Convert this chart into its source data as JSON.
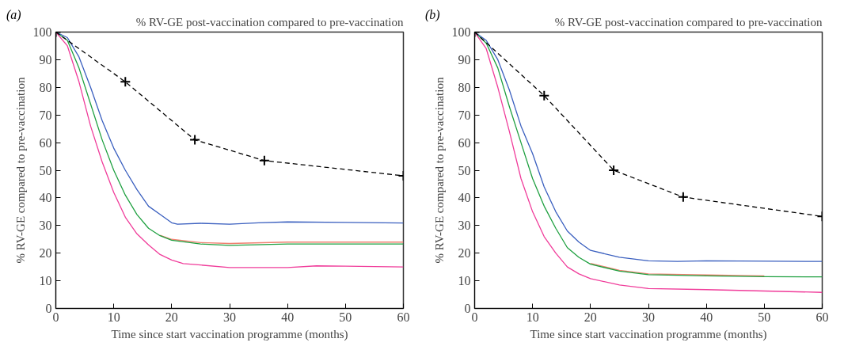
{
  "chart_data": [
    {
      "type": "line",
      "title": "% RV-GE post-vaccination compared to pre-vaccination",
      "xlabel": "Time since start vaccination programme (months)",
      "ylabel": "% RV-GE compared to pre-vaccination",
      "annotations": [
        "(a)"
      ],
      "xlim": [
        0,
        60
      ],
      "ylim": [
        0,
        100
      ],
      "xticks": [
        0,
        10,
        20,
        30,
        40,
        50,
        60
      ],
      "yticks": [
        0,
        10,
        20,
        30,
        40,
        50,
        60,
        70,
        80,
        90,
        100
      ],
      "grid": false,
      "series": [
        {
          "color": "#3a5fbf",
          "x": [
            0,
            2,
            4,
            6,
            8,
            10,
            12,
            14,
            16,
            18,
            20,
            21,
            25,
            30,
            35,
            40,
            50,
            60
          ],
          "values": [
            100,
            98,
            91,
            80,
            68,
            58,
            50,
            43,
            37,
            34,
            31,
            30.5,
            30.8,
            30.5,
            31,
            31.3,
            31.1,
            30.9
          ]
        },
        {
          "color": "#f08070",
          "x": [
            18,
            20,
            25,
            30,
            40,
            50,
            60
          ],
          "values": [
            26.5,
            25,
            23.8,
            23.5,
            24,
            24,
            24
          ]
        },
        {
          "color": "#1fa040",
          "x": [
            0,
            2,
            4,
            6,
            8,
            10,
            12,
            14,
            16,
            18,
            20,
            25,
            30,
            40,
            50,
            60
          ],
          "values": [
            100,
            97,
            87,
            74,
            61,
            50,
            41,
            34,
            29,
            26.3,
            24.7,
            23.3,
            22.8,
            23.3,
            23.3,
            23.3
          ]
        },
        {
          "color": "#f03c9a",
          "x": [
            0,
            2,
            4,
            6,
            8,
            10,
            12,
            14,
            16,
            18,
            20,
            22,
            25,
            30,
            40,
            45,
            50,
            60
          ],
          "values": [
            100,
            95,
            82,
            66,
            53,
            42,
            33,
            27,
            23,
            19.5,
            17.5,
            16.2,
            15.7,
            14.8,
            14.8,
            15.4,
            15.3,
            15
          ]
        },
        {
          "color": "#000000",
          "marker": "cross",
          "line_style": "dashed",
          "x": [
            0,
            12,
            24,
            36,
            60
          ],
          "values": [
            100,
            82,
            61,
            53.5,
            48
          ]
        }
      ]
    },
    {
      "type": "line",
      "title": "% RV-GE post-vaccination compared to pre-vaccination",
      "xlabel": "Time since start vaccination programme (months)",
      "ylabel": "% RV-GE compared to pre-vaccination",
      "annotations": [
        "(b)"
      ],
      "xlim": [
        0,
        60
      ],
      "ylim": [
        0,
        100
      ],
      "xticks": [
        0,
        10,
        20,
        30,
        40,
        50,
        60
      ],
      "yticks": [
        0,
        10,
        20,
        30,
        40,
        50,
        60,
        70,
        80,
        90,
        100
      ],
      "grid": false,
      "series": [
        {
          "color": "#3a5fbf",
          "x": [
            0,
            2,
            4,
            6,
            8,
            10,
            12,
            14,
            16,
            18,
            20,
            25,
            30,
            35,
            40,
            60
          ],
          "values": [
            100,
            97,
            90,
            79,
            66,
            56,
            44,
            35,
            28,
            24,
            21,
            18.5,
            17.2,
            17,
            17.2,
            17
          ]
        },
        {
          "color": "#f08070",
          "x": [
            20,
            25,
            30,
            40,
            50
          ],
          "values": [
            16.3,
            13.8,
            12.5,
            12.1,
            11.8
          ]
        },
        {
          "color": "#1fa040",
          "x": [
            0,
            2,
            4,
            6,
            8,
            10,
            12,
            14,
            16,
            18,
            20,
            25,
            30,
            40,
            50,
            60
          ],
          "values": [
            100,
            96,
            87,
            73,
            60,
            47,
            37,
            29,
            22,
            18.5,
            16,
            13.5,
            12.2,
            11.8,
            11.5,
            11.4
          ]
        },
        {
          "color": "#f03c9a",
          "x": [
            0,
            2,
            4,
            6,
            8,
            10,
            12,
            14,
            16,
            18,
            20,
            25,
            30,
            40,
            50,
            60
          ],
          "values": [
            100,
            94,
            80,
            64,
            47,
            35,
            26,
            20,
            15,
            12.5,
            10.8,
            8.5,
            7.2,
            6.8,
            6.3,
            5.8
          ]
        },
        {
          "color": "#000000",
          "marker": "cross",
          "line_style": "dashed",
          "x": [
            0,
            12,
            24,
            36,
            60
          ],
          "values": [
            100,
            77,
            50,
            40.3,
            33.3
          ]
        }
      ]
    }
  ]
}
